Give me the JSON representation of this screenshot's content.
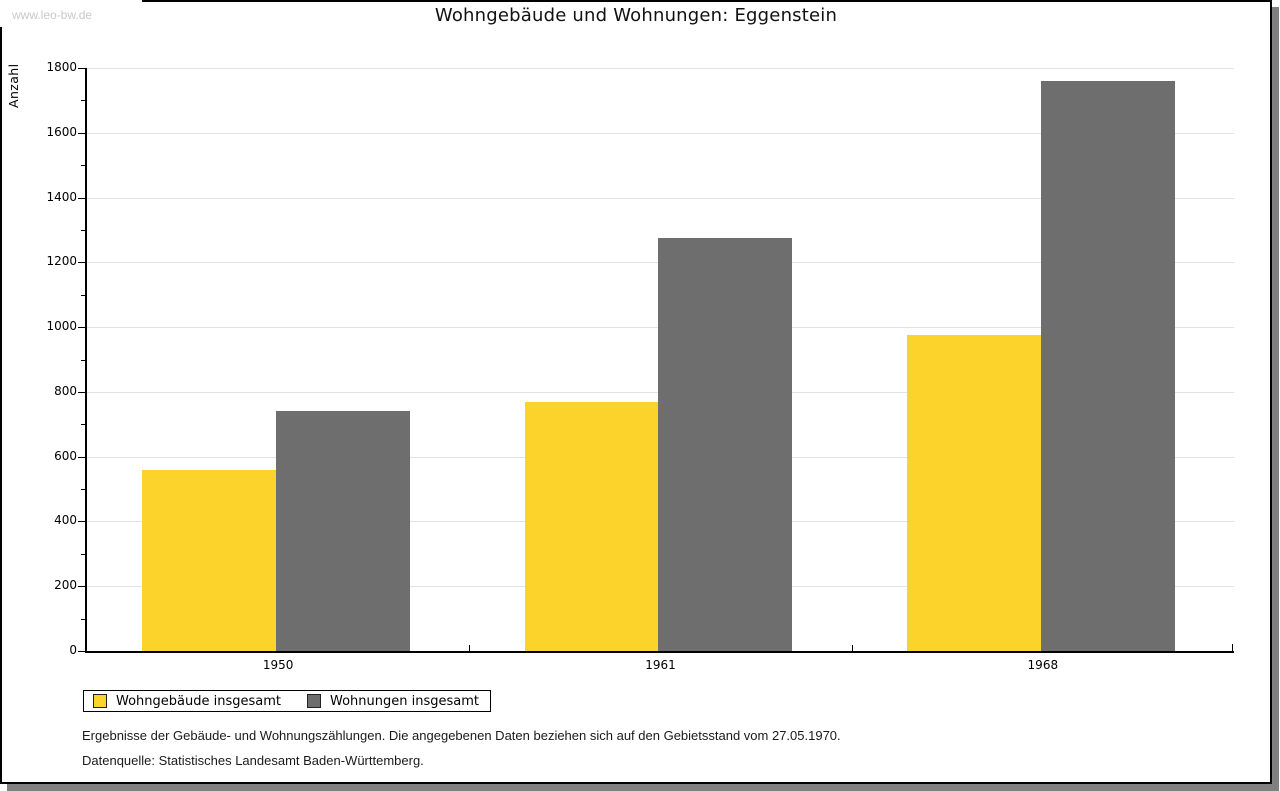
{
  "watermark": "www.leo-bw.de",
  "title": "Wohngebäude und Wohnungen: Eggenstein",
  "footer": {
    "line1": "Ergebnisse der Gebäude- und Wohnungszählungen. Die angegebenen Daten beziehen sich auf den Gebietsstand vom 27.05.1970.",
    "line2": "Datenquelle: Statistisches Landesamt Baden-Württemberg."
  },
  "chart_data": {
    "type": "bar",
    "title": "Wohngebäude und Wohnungen: Eggenstein",
    "categories": [
      "1950",
      "1961",
      "1968"
    ],
    "series": [
      {
        "name": "Wohngebäude insgesamt",
        "color": "#fcd32b",
        "values": [
          560,
          770,
          975
        ]
      },
      {
        "name": "Wohnungen insgesamt",
        "color": "#6e6e6e",
        "values": [
          740,
          1275,
          1760
        ]
      }
    ],
    "xlabel": "",
    "ylabel": "Anzahl",
    "ylim": [
      0,
      1800
    ],
    "ytick_major": 200,
    "ytick_minor": 100,
    "grid": "horizontal-major-only",
    "gridline_color": "#e2e2e2",
    "legend_position": "bottom-left",
    "bars_per_group": 2,
    "bar_gap_in_group": 0
  }
}
